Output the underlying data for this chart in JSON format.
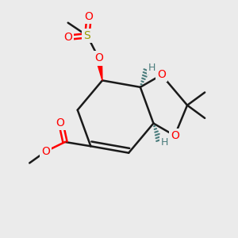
{
  "bg_color": "#ebebeb",
  "bond_color": "#1a1a1a",
  "red_color": "#ff0000",
  "sulfur_color": "#999900",
  "teal_color": "#4a7c7c",
  "line_width": 1.8,
  "figsize": [
    3.0,
    3.0
  ],
  "dpi": 100,
  "xlim": [
    0,
    10
  ],
  "ylim": [
    0,
    10
  ]
}
